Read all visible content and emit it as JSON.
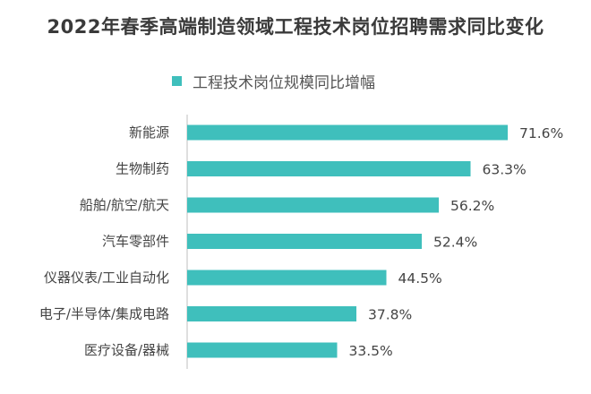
{
  "chart_data": {
    "type": "bar",
    "orientation": "horizontal",
    "title": "2022年春季高端制造领域工程技术岗位招聘需求同比变化",
    "legend": {
      "position": "top-left"
    },
    "categories": [
      "新能源",
      "生物制药",
      "船舶/航空/航天",
      "汽车零部件",
      "仪器仪表/工业自动化",
      "电子/半导体/集成电路",
      "医疗设备/器械"
    ],
    "series": [
      {
        "name": "工程技术岗位规模同比增幅",
        "color": "#3fbfbc",
        "values": [
          71.6,
          63.3,
          56.2,
          52.4,
          44.5,
          37.8,
          33.5
        ],
        "labels": [
          "71.6%",
          "63.3%",
          "56.2%",
          "52.4%",
          "44.5%",
          "37.8%",
          "33.5%"
        ]
      }
    ],
    "xlim": [
      0,
      80
    ],
    "grid": false
  }
}
